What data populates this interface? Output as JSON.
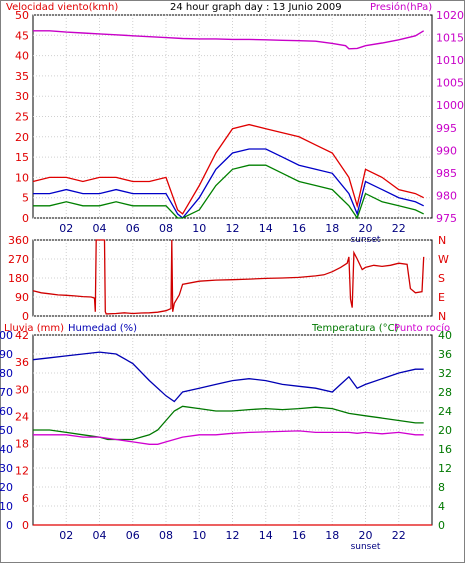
{
  "header": {
    "left": "Velocidad viento(kmh)",
    "center": "24 hour graph day : 13 Junio 2009",
    "right": "Presión(hPa)"
  },
  "bottom_header": {
    "lluvia": "Lluvia (mm)",
    "humedad": "Humedad (%)",
    "temperatura": "Temperatura (°C)",
    "punto_rocio": "Punto rocío"
  },
  "colors": {
    "border": "#000000",
    "grid": "#d0d0d0",
    "wind_gust": "#e00000",
    "wind_avg": "#0000c8",
    "wind_min": "#008000",
    "pressure": "#c800c8",
    "direction": "#d00000",
    "humidity": "#0000b4",
    "temperature": "#007800",
    "dewpoint": "#d000d0",
    "rain": "#e00000"
  },
  "chart_data": [
    {
      "type": "line",
      "name": "wind-pressure",
      "xlim": [
        0,
        24
      ],
      "x_ticks": [
        "02",
        "04",
        "06",
        "08",
        "10",
        "12",
        "14",
        "16",
        "18",
        "20",
        "22"
      ],
      "sunset_label": "sunset",
      "ylim_left": [
        0,
        50
      ],
      "yticks_left": [
        0,
        5,
        10,
        15,
        20,
        25,
        30,
        35,
        40,
        45,
        50
      ],
      "ylim_right": [
        975,
        1020
      ],
      "yticks_right": [
        975,
        980,
        985,
        990,
        995,
        1000,
        1005,
        1010,
        1015,
        1020
      ],
      "series": [
        {
          "key": "gust",
          "axis": "left",
          "x": [
            0,
            1,
            2,
            3,
            4,
            5,
            6,
            7,
            8,
            8.7,
            9,
            10,
            11,
            12,
            13,
            14,
            15,
            16,
            17,
            18,
            19,
            19.5,
            20,
            21,
            22,
            23,
            23.5
          ],
          "y": [
            9,
            10,
            10,
            9,
            10,
            10,
            9,
            9,
            10,
            2,
            1,
            8,
            16,
            22,
            23,
            22,
            21,
            20,
            18,
            16,
            10,
            3,
            12,
            10,
            7,
            6,
            5
          ]
        },
        {
          "key": "avg",
          "axis": "left",
          "x": [
            0,
            1,
            2,
            3,
            4,
            5,
            6,
            7,
            8,
            8.7,
            9,
            10,
            11,
            12,
            13,
            14,
            15,
            16,
            17,
            18,
            19,
            19.5,
            20,
            21,
            22,
            23,
            23.5
          ],
          "y": [
            6,
            6,
            7,
            6,
            6,
            7,
            6,
            6,
            6,
            1,
            0,
            5,
            12,
            16,
            17,
            17,
            15,
            13,
            12,
            11,
            6,
            1,
            9,
            7,
            5,
            4,
            3
          ]
        },
        {
          "key": "min",
          "axis": "left",
          "x": [
            0,
            1,
            2,
            3,
            4,
            5,
            6,
            7,
            8,
            8.7,
            9,
            10,
            11,
            12,
            13,
            14,
            15,
            16,
            17,
            18,
            19,
            19.5,
            20,
            21,
            22,
            23,
            23.5
          ],
          "y": [
            3,
            3,
            4,
            3,
            3,
            4,
            3,
            3,
            3,
            0,
            0,
            2,
            8,
            12,
            13,
            13,
            11,
            9,
            8,
            7,
            3,
            0,
            6,
            4,
            3,
            2,
            1
          ]
        },
        {
          "key": "pressure",
          "axis": "right",
          "x": [
            0,
            1,
            2,
            3,
            4,
            5,
            6,
            7,
            8,
            9,
            10,
            11,
            12,
            13,
            14,
            15,
            16,
            17,
            18,
            18.8,
            19,
            19.5,
            20,
            21,
            22,
            23,
            23.5
          ],
          "y": [
            1016.5,
            1016.5,
            1016.2,
            1016,
            1015.8,
            1015.6,
            1015.4,
            1015.2,
            1015,
            1014.8,
            1014.7,
            1014.7,
            1014.6,
            1014.6,
            1014.5,
            1014.4,
            1014.3,
            1014.2,
            1013.7,
            1013.2,
            1012.5,
            1012.6,
            1013.2,
            1013.8,
            1014.5,
            1015.4,
            1016.5
          ]
        }
      ]
    },
    {
      "type": "line",
      "name": "wind-direction",
      "xlim": [
        0,
        24
      ],
      "ylim": [
        0,
        360
      ],
      "yticks_left": [
        0,
        90,
        180,
        270,
        360
      ],
      "yticks_right": [
        "N",
        "E",
        "S",
        "W",
        "N"
      ],
      "series": [
        {
          "key": "direction",
          "x": [
            0,
            0.5,
            1,
            1.5,
            2,
            2.5,
            3,
            3.5,
            3.7,
            3.75,
            3.8,
            4.3,
            4.35,
            4.4,
            5,
            5.5,
            6,
            6.5,
            7,
            7.5,
            8,
            8.3,
            8.35,
            8.4,
            8.5,
            8.8,
            9,
            10,
            11,
            12,
            13,
            14,
            15,
            16,
            17,
            17.5,
            18,
            18.5,
            18.9,
            19,
            19.1,
            19.2,
            19.3,
            19.5,
            19.8,
            20,
            20.5,
            21,
            21.5,
            22,
            22.5,
            22.7,
            23,
            23.4,
            23.5
          ],
          "y": [
            120,
            110,
            105,
            100,
            98,
            95,
            92,
            90,
            85,
            20,
            360,
            360,
            20,
            10,
            12,
            15,
            12,
            14,
            15,
            18,
            25,
            35,
            360,
            20,
            60,
            100,
            150,
            165,
            170,
            172,
            175,
            178,
            180,
            183,
            190,
            195,
            210,
            230,
            250,
            280,
            80,
            40,
            300,
            270,
            220,
            230,
            240,
            235,
            240,
            250,
            245,
            130,
            110,
            115,
            280
          ]
        }
      ]
    },
    {
      "type": "line",
      "name": "rain-humidity-temperature",
      "xlim": [
        0,
        24
      ],
      "ylim_left": [
        0,
        100
      ],
      "yticks_left_humidity": [
        0,
        10,
        20,
        30,
        40,
        50,
        60,
        70,
        80,
        90,
        100
      ],
      "yticks_left_rain": [
        0,
        6,
        12,
        18,
        24,
        30,
        36,
        42
      ],
      "ylim_right": [
        0,
        40
      ],
      "yticks_right": [
        0,
        4,
        8,
        12,
        16,
        20,
        24,
        28,
        32,
        36,
        40
      ],
      "series": [
        {
          "key": "humidity",
          "axis": "left",
          "x": [
            0,
            1,
            2,
            3,
            4,
            5,
            6,
            7,
            8,
            8.5,
            9,
            10,
            11,
            12,
            13,
            14,
            15,
            16,
            17,
            18,
            18.5,
            19,
            19.5,
            20,
            21,
            22,
            23,
            23.5
          ],
          "y": [
            87,
            88,
            89,
            90,
            91,
            90,
            85,
            76,
            68,
            65,
            70,
            72,
            74,
            76,
            77,
            76,
            74,
            73,
            72,
            70,
            74,
            78,
            72,
            74,
            77,
            80,
            82,
            82
          ]
        },
        {
          "key": "temperature",
          "axis": "right",
          "x": [
            0,
            1,
            2,
            3,
            4,
            4.5,
            5,
            6,
            7,
            7.5,
            8,
            8.5,
            9,
            10,
            11,
            12,
            13,
            14,
            15,
            16,
            17,
            18,
            19,
            20,
            21,
            22,
            23,
            23.5
          ],
          "y": [
            20,
            20,
            19.5,
            19,
            18.5,
            18,
            18,
            18,
            19,
            20,
            22,
            24,
            25,
            24.5,
            24,
            24,
            24.3,
            24.5,
            24.3,
            24.5,
            24.8,
            24.5,
            23.5,
            23,
            22.5,
            22,
            21.5,
            21.5
          ]
        },
        {
          "key": "dewpoint",
          "axis": "right",
          "x": [
            0,
            1,
            2,
            3,
            4,
            5,
            6,
            7,
            7.5,
            8,
            8.5,
            9,
            10,
            11,
            12,
            13,
            14,
            15,
            16,
            17,
            18,
            19,
            19.5,
            20,
            21,
            22,
            23,
            23.5
          ],
          "y": [
            19,
            19,
            19,
            18.5,
            18.5,
            18,
            17.5,
            17,
            17,
            17.5,
            18,
            18.5,
            19,
            19,
            19.3,
            19.5,
            19.6,
            19.7,
            19.8,
            19.5,
            19.5,
            19.5,
            19.3,
            19.5,
            19.2,
            19.5,
            19,
            19
          ]
        },
        {
          "key": "rain",
          "axis": "left",
          "x": [
            0,
            24
          ],
          "y": [
            0,
            0
          ]
        }
      ]
    }
  ]
}
